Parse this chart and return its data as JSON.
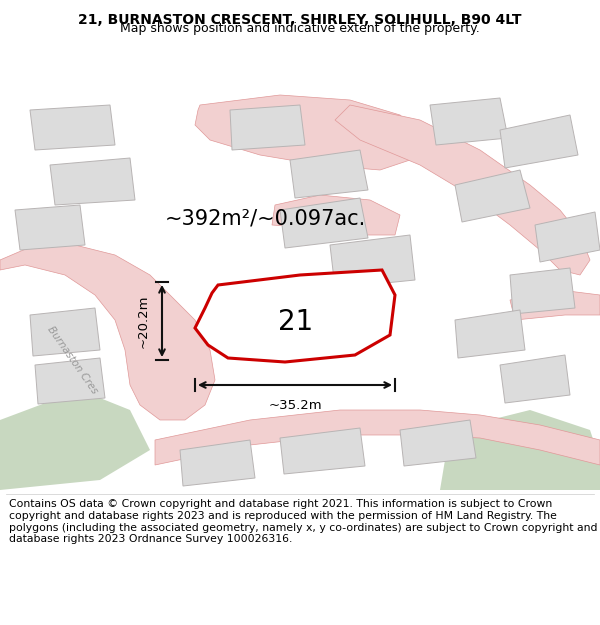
{
  "title_line1": "21, BURNASTON CRESCENT, SHIRLEY, SOLIHULL, B90 4LT",
  "title_line2": "Map shows position and indicative extent of the property.",
  "footer_text": "Contains OS data © Crown copyright and database right 2021. This information is subject to Crown copyright and database rights 2023 and is reproduced with the permission of HM Land Registry. The polygons (including the associated geometry, namely x, y co-ordinates) are subject to Crown copyright and database rights 2023 Ordnance Survey 100026316.",
  "area_label": "~392m²/~0.097ac.",
  "width_label": "~35.2m",
  "height_label": "~20.2m",
  "property_number": "21",
  "street_label": "Burnaston Cres",
  "map_bg": "#f5f4f2",
  "road_color": "#f2d0d0",
  "road_stroke": "#e09898",
  "building_fill": "#dcdcdc",
  "building_stroke": "#b8b4b4",
  "highlight_stroke": "#cc0000",
  "green_fill": "#c8d8c0",
  "arrow_color": "#111111",
  "title_fontsize": 10.0,
  "subtitle_fontsize": 9.0,
  "footer_fontsize": 7.8,
  "area_fontsize": 15,
  "number_fontsize": 20
}
